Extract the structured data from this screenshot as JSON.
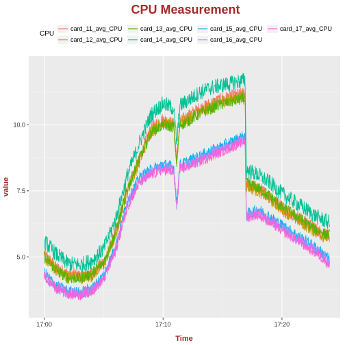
{
  "chart_data": {
    "type": "line",
    "title": "CPU Measurement",
    "xlabel": "Time",
    "ylabel": "value",
    "legend_title": "CPU",
    "legend_position": "top",
    "grid": true,
    "x_ticks": [
      "17:00",
      "17:10",
      "17:20"
    ],
    "x_tick_minutes": [
      0,
      10,
      20
    ],
    "y_ticks": [
      "5.0",
      "7.5",
      "10.0"
    ],
    "y_tick_values": [
      5.0,
      7.5,
      10.0
    ],
    "xlim": [
      -1.3,
      24.9
    ],
    "ylim": [
      2.7,
      12.6
    ],
    "x_unit": "minutes after 17:00",
    "series": [
      {
        "name": "card_11_avg_CPU",
        "color": "#F8766D",
        "offset": 0.0,
        "noise": 0.25,
        "x": [
          0,
          1,
          2,
          3,
          4,
          5,
          6,
          7,
          8,
          9,
          10,
          11,
          12,
          13,
          14,
          15,
          16,
          16.9,
          17.0,
          18,
          19,
          20,
          21,
          22,
          23,
          24
        ],
        "y": [
          5.1,
          4.6,
          4.35,
          4.3,
          4.4,
          4.8,
          5.9,
          7.6,
          8.7,
          9.9,
          10.2,
          10.0,
          10.3,
          10.6,
          10.8,
          11.0,
          11.1,
          11.2,
          7.8,
          7.6,
          7.3,
          6.9,
          6.6,
          6.3,
          6.0,
          5.8
        ]
      },
      {
        "name": "card_12_avg_CPU",
        "color": "#C49A00",
        "offset": -0.05,
        "noise": 0.25,
        "x": [
          0,
          1,
          2,
          3,
          4,
          5,
          6,
          7,
          8,
          9,
          10,
          11,
          12,
          13,
          14,
          15,
          16,
          16.9,
          17.0,
          18,
          19,
          20,
          21,
          22,
          23,
          24
        ],
        "y": [
          5.0,
          4.5,
          4.25,
          4.2,
          4.3,
          4.7,
          5.8,
          7.5,
          8.6,
          9.8,
          10.1,
          9.9,
          10.2,
          10.5,
          10.7,
          10.9,
          11.0,
          11.1,
          7.7,
          7.5,
          7.2,
          6.8,
          6.5,
          6.2,
          5.9,
          5.7
        ]
      },
      {
        "name": "card_13_avg_CPU",
        "color": "#53B400",
        "offset": 0.0,
        "noise": 0.22,
        "x": [
          0,
          1,
          2,
          3,
          4,
          5,
          6,
          7,
          8,
          9,
          10,
          11,
          12,
          13,
          14,
          15,
          16,
          16.9,
          17.0,
          18,
          19,
          20,
          21,
          22,
          23,
          24
        ],
        "y": [
          5.0,
          4.5,
          4.2,
          4.2,
          4.35,
          4.8,
          5.9,
          7.6,
          8.7,
          9.7,
          10.0,
          9.9,
          10.1,
          10.4,
          10.6,
          10.8,
          10.9,
          11.0,
          7.8,
          7.6,
          7.3,
          6.9,
          6.6,
          6.3,
          6.0,
          5.8
        ]
      },
      {
        "name": "card_14_avg_CPU",
        "color": "#00C094",
        "offset": 0.0,
        "noise": 0.3,
        "x": [
          0,
          1,
          2,
          3,
          4,
          5,
          6,
          7,
          8,
          9,
          10,
          11,
          12,
          13,
          14,
          15,
          16,
          16.9,
          17.0,
          18,
          19,
          20,
          21,
          22,
          23,
          24
        ],
        "y": [
          5.6,
          5.1,
          4.75,
          4.7,
          4.85,
          5.3,
          6.4,
          8.1,
          9.3,
          10.4,
          10.8,
          10.6,
          10.9,
          11.2,
          11.4,
          11.5,
          11.6,
          11.7,
          8.3,
          8.1,
          7.8,
          7.4,
          7.1,
          6.8,
          6.5,
          6.3
        ]
      },
      {
        "name": "card_15_avg_CPU",
        "color": "#00B6EB",
        "offset": 0.0,
        "noise": 0.22,
        "x": [
          0,
          1,
          2,
          3,
          4,
          5,
          6,
          7,
          8,
          9,
          10,
          11,
          12,
          13,
          14,
          15,
          16,
          16.9,
          17.0,
          18,
          19,
          20,
          21,
          22,
          23,
          24
        ],
        "y": [
          4.4,
          3.9,
          3.7,
          3.65,
          3.8,
          4.3,
          5.4,
          7.1,
          8.0,
          8.3,
          8.5,
          8.4,
          8.6,
          8.8,
          9.0,
          9.2,
          9.4,
          9.6,
          6.6,
          6.8,
          6.5,
          6.2,
          5.9,
          5.6,
          5.3,
          4.9
        ]
      },
      {
        "name": "card_16_avg_CPU",
        "color": "#A58AFF",
        "offset": 0.0,
        "noise": 0.22,
        "x": [
          0,
          1,
          2,
          3,
          4,
          5,
          6,
          7,
          8,
          9,
          10,
          11,
          12,
          13,
          14,
          15,
          16,
          16.9,
          17.0,
          18,
          19,
          20,
          21,
          22,
          23,
          24
        ],
        "y": [
          4.3,
          3.85,
          3.65,
          3.6,
          3.75,
          4.2,
          5.3,
          7.0,
          7.9,
          8.2,
          8.4,
          8.3,
          8.5,
          8.7,
          8.9,
          9.1,
          9.3,
          9.5,
          6.5,
          6.7,
          6.4,
          6.1,
          5.8,
          5.5,
          5.2,
          4.8
        ]
      },
      {
        "name": "card_17_avg_CPU",
        "color": "#FB61D7",
        "offset": 0.0,
        "noise": 0.2,
        "x": [
          0,
          1,
          2,
          3,
          4,
          5,
          6,
          7,
          8,
          9,
          10,
          11,
          12,
          13,
          14,
          15,
          16,
          16.9,
          17.0,
          18,
          19,
          20,
          21,
          22,
          23,
          24
        ],
        "y": [
          4.25,
          3.8,
          3.6,
          3.55,
          3.7,
          4.15,
          5.2,
          6.9,
          7.8,
          8.1,
          8.3,
          8.2,
          8.4,
          8.6,
          8.8,
          9.0,
          9.2,
          9.4,
          6.5,
          6.6,
          6.3,
          6.0,
          5.7,
          5.4,
          5.1,
          4.7
        ]
      }
    ]
  }
}
